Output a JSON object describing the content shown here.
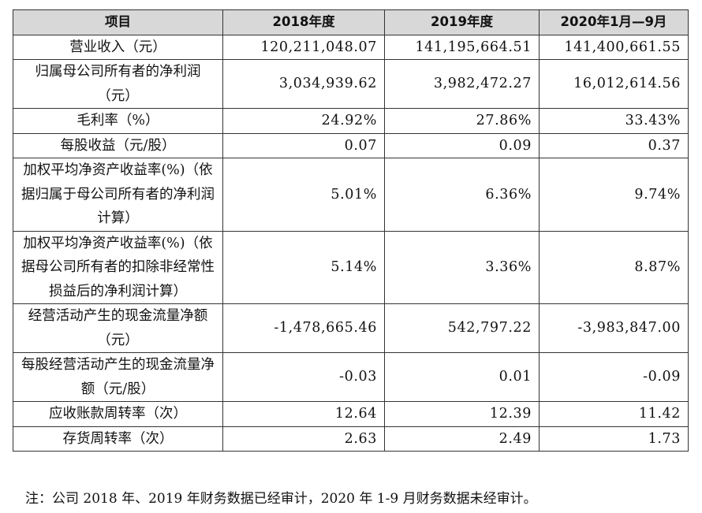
{
  "table": {
    "headers": [
      "项目",
      "2018年度",
      "2019年度",
      "2020年1月—9月"
    ],
    "rows": [
      {
        "item": "营业收入（元）",
        "v2018": "120,211,048.07",
        "v2019": "141,195,664.51",
        "v2020": "141,400,661.55"
      },
      {
        "item": "归属母公司所有者的净利润（元）",
        "v2018": "3,034,939.62",
        "v2019": "3,982,472.27",
        "v2020": "16,012,614.56"
      },
      {
        "item": "毛利率（%）",
        "v2018": "24.92%",
        "v2019": "27.86%",
        "v2020": "33.43%"
      },
      {
        "item": "每股收益（元/股）",
        "v2018": "0.07",
        "v2019": "0.09",
        "v2020": "0.37"
      },
      {
        "item": "加权平均净资产收益率(%)（依据归属于母公司所有者的净利润计算）",
        "v2018": "5.01%",
        "v2019": "6.36%",
        "v2020": "9.74%"
      },
      {
        "item": "加权平均净资产收益率(%)（依据母公司所有者的扣除非经常性损益后的净利润计算）",
        "v2018": "5.14%",
        "v2019": "3.36%",
        "v2020": "8.87%"
      },
      {
        "item": "经营活动产生的现金流量净额（元）",
        "v2018": "-1,478,665.46",
        "v2019": "542,797.22",
        "v2020": "-3,983,847.00"
      },
      {
        "item": "每股经营活动产生的现金流量净额（元/股）",
        "v2018": "-0.03",
        "v2019": "0.01",
        "v2020": "-0.09"
      },
      {
        "item": "应收账款周转率（次）",
        "v2018": "12.64",
        "v2019": "12.39",
        "v2020": "11.42"
      },
      {
        "item": "存货周转率（次）",
        "v2018": "2.63",
        "v2019": "2.49",
        "v2020": "1.73"
      }
    ]
  },
  "note": "注：公司 2018 年、2019 年财务数据已经审计，2020 年 1-9 月财务数据未经审计。"
}
